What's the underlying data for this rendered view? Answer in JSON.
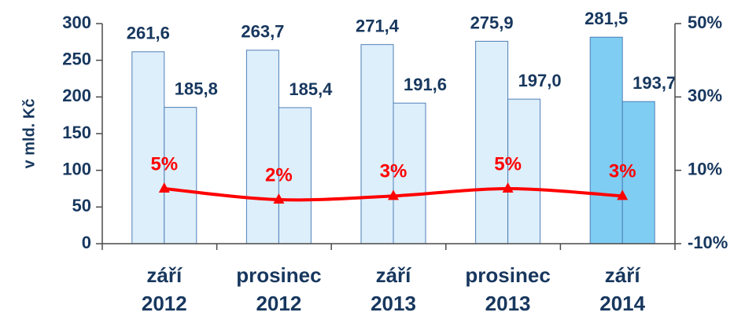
{
  "chart_data": {
    "type": "bar_line",
    "y_label": "v mld. Kč",
    "categories": [
      [
        "září",
        "2012"
      ],
      [
        "prosinec",
        "2012"
      ],
      [
        "září",
        "2013"
      ],
      [
        "prosinec",
        "2013"
      ],
      [
        "září",
        "2014"
      ]
    ],
    "series": [
      {
        "type": "bar",
        "colors": [
          "#ddeffb",
          "#ddeffb",
          "#ddeffb",
          "#ddeffb",
          "#7fcdf2"
        ],
        "values": [
          261.6,
          263.7,
          271.4,
          275.9,
          281.5
        ],
        "value_labels": [
          "261,6",
          "263,7",
          "271,4",
          "275,9",
          "281,5"
        ]
      },
      {
        "type": "bar",
        "colors": [
          "#ddeffb",
          "#ddeffb",
          "#ddeffb",
          "#ddeffb",
          "#7fcdf2"
        ],
        "values": [
          185.8,
          185.4,
          191.6,
          197.0,
          193.7
        ],
        "value_labels": [
          "185,8",
          "185,4",
          "191,6",
          "197,0",
          "193,7"
        ]
      },
      {
        "type": "line",
        "axis": "y2",
        "color": "#ff0000",
        "values": [
          5,
          2,
          3,
          5,
          3
        ],
        "value_labels": [
          "5%",
          "2%",
          "3%",
          "5%",
          "3%"
        ]
      }
    ],
    "ylim": [
      0,
      300
    ],
    "yticks": [
      0,
      50,
      100,
      150,
      200,
      250,
      300
    ],
    "y2lim": [
      -10,
      50
    ],
    "y2ticks": [
      {
        "value": -10,
        "label": "-10%"
      },
      {
        "value": 10,
        "label": "10%"
      },
      {
        "value": 30,
        "label": "30%"
      },
      {
        "value": 50,
        "label": "50%"
      }
    ]
  }
}
